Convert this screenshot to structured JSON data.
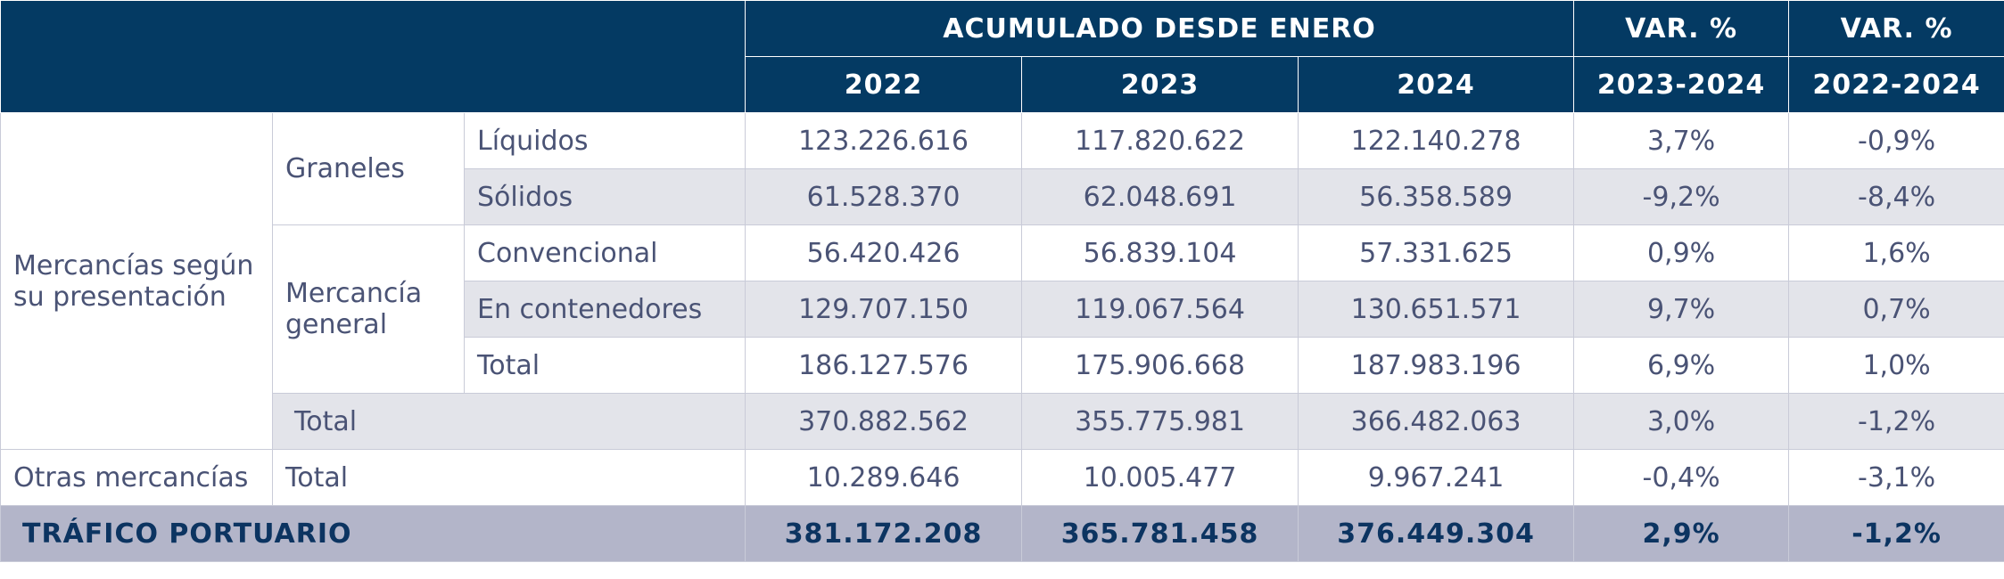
{
  "table": {
    "header": {
      "group": "ACUMULADO DESDE ENERO",
      "var_a": "VAR. %",
      "var_b": "VAR. %",
      "years": [
        "2022",
        "2023",
        "2024"
      ],
      "period_a": "2023-2024",
      "period_b": "2022-2024"
    },
    "labels": {
      "section": "Mercancías según su presentación",
      "graneles": "Graneles",
      "general": "Mercancía general",
      "otras": "Otras mercancías",
      "trafico": "TRÁFICO PORTUARIO"
    },
    "rows": [
      {
        "label": "Líquidos",
        "values": [
          "123.226.616",
          "117.820.622",
          "122.140.278",
          "3,7%",
          "-0,9%"
        ]
      },
      {
        "label": "Sólidos",
        "values": [
          "61.528.370",
          "62.048.691",
          "56.358.589",
          "-9,2%",
          "-8,4%"
        ]
      },
      {
        "label": "Convencional",
        "values": [
          "56.420.426",
          "56.839.104",
          "57.331.625",
          "0,9%",
          "1,6%"
        ]
      },
      {
        "label": "En contenedores",
        "values": [
          "129.707.150",
          "119.067.564",
          "130.651.571",
          "9,7%",
          "0,7%"
        ]
      },
      {
        "label": "Total",
        "values": [
          "186.127.576",
          "175.906.668",
          "187.983.196",
          "6,9%",
          "1,0%"
        ]
      },
      {
        "label": "Total",
        "values": [
          "370.882.562",
          "355.775.981",
          "366.482.063",
          "3,0%",
          "-1,2%"
        ]
      },
      {
        "label": "Total",
        "values": [
          "10.289.646",
          "10.005.477",
          "9.967.241",
          "-0,4%",
          "-3,1%"
        ]
      },
      {
        "values": [
          "381.172.208",
          "365.781.458",
          "376.449.304",
          "2,9%",
          "-1,2%"
        ]
      }
    ]
  }
}
